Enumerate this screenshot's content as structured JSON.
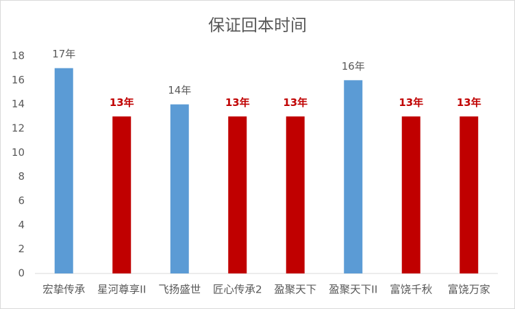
{
  "chart_data": {
    "type": "bar",
    "title": "保证回本时间",
    "categories": [
      "宏挚传承",
      "星河尊享II",
      "飞扬盛世",
      "匠心传承2",
      "盈聚天下",
      "盈聚天下II",
      "富饶千秋",
      "富饶万家"
    ],
    "values": [
      17,
      13,
      14,
      13,
      13,
      16,
      13,
      13
    ],
    "value_labels": [
      "17年",
      "13年",
      "14年",
      "13年",
      "13年",
      "16年",
      "13年",
      "13年"
    ],
    "colors": [
      "#5b9bd5",
      "#c00000",
      "#5b9bd5",
      "#c00000",
      "#c00000",
      "#5b9bd5",
      "#c00000",
      "#c00000"
    ],
    "highlight_color": "#c00000",
    "ylim": [
      0,
      18
    ],
    "yticks": [
      0,
      2,
      4,
      6,
      8,
      10,
      12,
      14,
      16,
      18
    ],
    "grid": false
  }
}
